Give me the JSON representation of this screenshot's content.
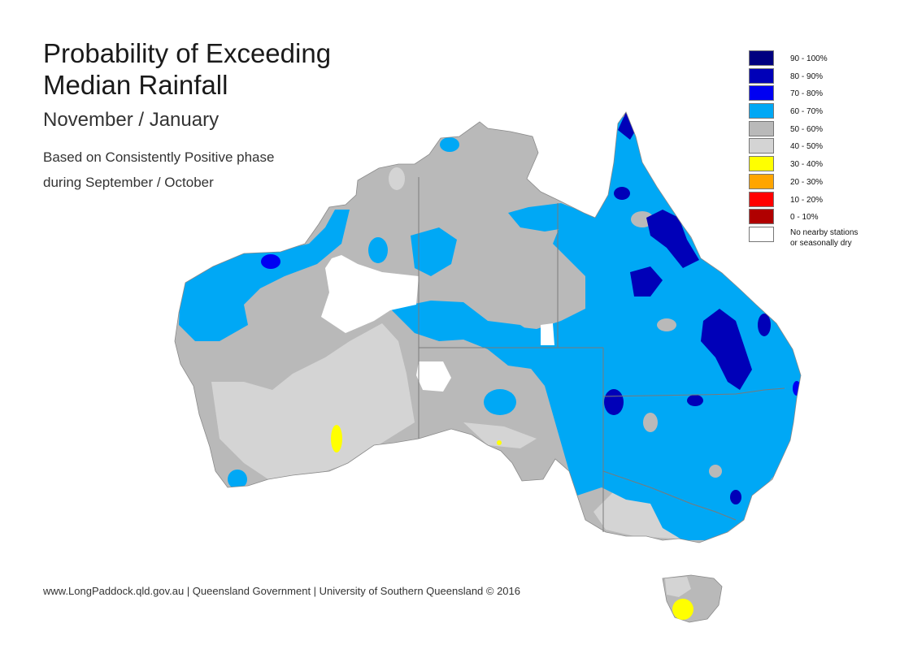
{
  "header": {
    "title_line1": "Probability of Exceeding",
    "title_line2": "Median Rainfall",
    "subtitle": "November / January",
    "description_line1": "Based on Consistently Positive phase",
    "description_line2": "during September / October"
  },
  "legend": {
    "items": [
      {
        "label": "90 - 100%",
        "color": "#000080"
      },
      {
        "label": "80 - 90%",
        "color": "#0000b8"
      },
      {
        "label": "70 - 80%",
        "color": "#0000f2"
      },
      {
        "label": "60 - 70%",
        "color": "#00a8f5"
      },
      {
        "label": "50 - 60%",
        "color": "#b9b9b9"
      },
      {
        "label": "40 - 50%",
        "color": "#d4d4d4"
      },
      {
        "label": "30 - 40%",
        "color": "#ffff00"
      },
      {
        "label": "20 - 30%",
        "color": "#ffa500"
      },
      {
        "label": "10 - 20%",
        "color": "#ff0000"
      },
      {
        "label": "0 - 10%",
        "color": "#b00000"
      }
    ],
    "no_data_label_line1": "No nearby stations",
    "no_data_label_line2": "or seasonally dry",
    "no_data_color": "#ffffff"
  },
  "map": {
    "region": "Australia",
    "land_base_color": "#b9b9b9",
    "border_color": "#7a7a7a"
  },
  "footer": {
    "credit": "www.LongPaddock.qld.gov.au | Queensland Government | University of Southern Queensland © 2016"
  }
}
